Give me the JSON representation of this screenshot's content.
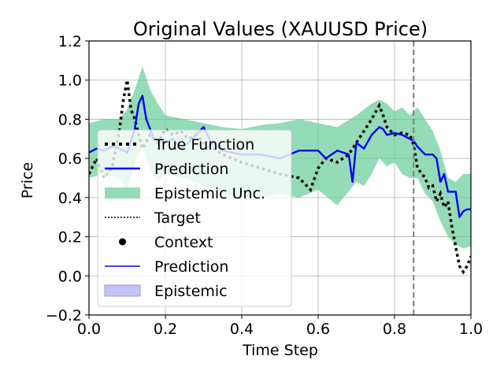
{
  "chart_data": {
    "type": "line",
    "title": "Original Values (XAUUSD Price)",
    "xlabel": "Time Step",
    "ylabel": "Price",
    "xlim": [
      0.0,
      1.0
    ],
    "ylim": [
      -0.2,
      1.2
    ],
    "xticks": [
      0.0,
      0.2,
      0.4,
      0.6,
      0.8,
      1.0
    ],
    "xtick_labels": [
      "0.0",
      "0.2",
      "0.4",
      "0.6",
      "0.8",
      "1.0"
    ],
    "yticks": [
      -0.2,
      0.0,
      0.2,
      0.4,
      0.6,
      0.8,
      1.0,
      1.2
    ],
    "ytick_labels": [
      "−0.2",
      "0.0",
      "0.2",
      "0.4",
      "0.6",
      "0.8",
      "1.0",
      "1.2"
    ],
    "grid": true,
    "legend_position": "center-left",
    "vline_x": 0.85,
    "colors": {
      "true_function": "#000000",
      "prediction": "#0000ff",
      "epistemic_band": "#66cc99",
      "epistemic_band_light": "#b3b3f2",
      "vline": "#808080",
      "grid": "#b0b0b0"
    },
    "legend": [
      {
        "label": "True Function",
        "style": "dotted-thick",
        "color": "#000000"
      },
      {
        "label": "Prediction",
        "style": "line",
        "color": "#0000ff"
      },
      {
        "label": "Epistemic Unc.",
        "style": "patch",
        "color": "#66cc99"
      },
      {
        "label": "Target",
        "style": "dotted-thin",
        "color": "#000000"
      },
      {
        "label": "Context",
        "style": "marker",
        "color": "#000000"
      },
      {
        "label": "Prediction",
        "style": "line-thin",
        "color": "#0000ff"
      },
      {
        "label": "Epistemic",
        "style": "patch-light",
        "color": "#b3b3f2"
      }
    ],
    "true_function": {
      "x": [
        0.0,
        0.02,
        0.04,
        0.06,
        0.08,
        0.09,
        0.1,
        0.11,
        0.12,
        0.13,
        0.14,
        0.16,
        0.18,
        0.2,
        0.22,
        0.24,
        0.26,
        0.28,
        0.3,
        0.32,
        0.35,
        0.4,
        0.45,
        0.5,
        0.55,
        0.58,
        0.6,
        0.62,
        0.65,
        0.68,
        0.7,
        0.72,
        0.74,
        0.76,
        0.77,
        0.78,
        0.8,
        0.82,
        0.84,
        0.85,
        0.86,
        0.88,
        0.89,
        0.9,
        0.91,
        0.92,
        0.93,
        0.94,
        0.95,
        0.96,
        0.97,
        0.98,
        0.99,
        1.0
      ],
      "y": [
        0.52,
        0.6,
        0.5,
        0.55,
        0.75,
        0.9,
        1.0,
        0.85,
        0.8,
        0.72,
        0.65,
        0.72,
        0.68,
        0.75,
        0.72,
        0.74,
        0.7,
        0.72,
        0.68,
        0.66,
        0.62,
        0.58,
        0.55,
        0.52,
        0.5,
        0.44,
        0.55,
        0.6,
        0.58,
        0.62,
        0.68,
        0.74,
        0.8,
        0.87,
        0.82,
        0.76,
        0.72,
        0.73,
        0.72,
        0.67,
        0.55,
        0.5,
        0.45,
        0.46,
        0.38,
        0.42,
        0.35,
        0.38,
        0.25,
        0.15,
        0.05,
        0.02,
        0.05,
        0.1
      ]
    },
    "prediction": {
      "x": [
        0.0,
        0.02,
        0.04,
        0.06,
        0.08,
        0.1,
        0.12,
        0.13,
        0.14,
        0.15,
        0.17,
        0.2,
        0.22,
        0.24,
        0.26,
        0.28,
        0.3,
        0.32,
        0.35,
        0.4,
        0.45,
        0.5,
        0.55,
        0.6,
        0.62,
        0.65,
        0.68,
        0.69,
        0.7,
        0.72,
        0.74,
        0.76,
        0.77,
        0.78,
        0.8,
        0.82,
        0.84,
        0.85,
        0.86,
        0.88,
        0.9,
        0.91,
        0.92,
        0.93,
        0.94,
        0.95,
        0.96,
        0.97,
        0.98,
        0.99,
        1.0
      ],
      "y": [
        0.63,
        0.65,
        0.64,
        0.66,
        0.65,
        0.63,
        0.75,
        0.88,
        0.92,
        0.8,
        0.7,
        0.68,
        0.7,
        0.65,
        0.68,
        0.72,
        0.76,
        0.68,
        0.64,
        0.62,
        0.62,
        0.6,
        0.64,
        0.64,
        0.6,
        0.64,
        0.62,
        0.48,
        0.68,
        0.65,
        0.72,
        0.76,
        0.75,
        0.72,
        0.73,
        0.72,
        0.7,
        0.69,
        0.66,
        0.62,
        0.62,
        0.6,
        0.48,
        0.52,
        0.43,
        0.43,
        0.43,
        0.3,
        0.33,
        0.34,
        0.34
      ]
    },
    "epistemic_band": {
      "x": [
        0.0,
        0.04,
        0.08,
        0.1,
        0.12,
        0.14,
        0.16,
        0.18,
        0.2,
        0.25,
        0.3,
        0.35,
        0.4,
        0.45,
        0.5,
        0.55,
        0.6,
        0.65,
        0.7,
        0.72,
        0.74,
        0.76,
        0.78,
        0.8,
        0.82,
        0.84,
        0.86,
        0.88,
        0.9,
        0.92,
        0.94,
        0.96,
        0.98,
        1.0
      ],
      "upper": [
        0.78,
        0.8,
        0.8,
        0.85,
        0.95,
        1.07,
        0.95,
        0.88,
        0.82,
        0.8,
        0.78,
        0.76,
        0.75,
        0.77,
        0.78,
        0.8,
        0.78,
        0.76,
        0.82,
        0.85,
        0.88,
        0.9,
        0.88,
        0.84,
        0.86,
        0.82,
        0.86,
        0.8,
        0.74,
        0.64,
        0.5,
        0.48,
        0.52,
        0.52
      ],
      "lower": [
        0.5,
        0.52,
        0.5,
        0.44,
        0.58,
        0.66,
        0.55,
        0.48,
        0.52,
        0.5,
        0.46,
        0.42,
        0.4,
        0.4,
        0.42,
        0.4,
        0.44,
        0.36,
        0.48,
        0.46,
        0.52,
        0.6,
        0.56,
        0.58,
        0.52,
        0.5,
        0.5,
        0.42,
        0.38,
        0.28,
        0.2,
        0.16,
        0.14,
        0.15
      ]
    }
  }
}
